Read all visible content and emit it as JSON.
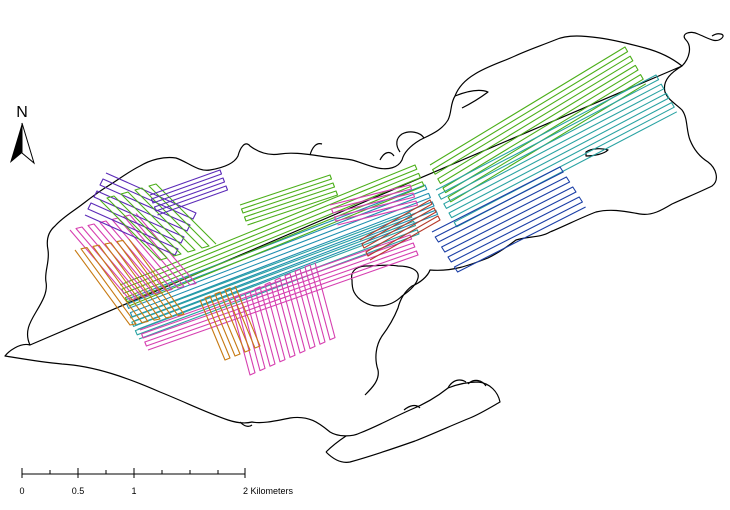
{
  "north_arrow": {
    "label": "N"
  },
  "scale_bar": {
    "ticks": [
      {
        "label": "0",
        "km": 0
      },
      {
        "label": "0.5",
        "km": 0.5
      },
      {
        "label": "1",
        "km": 1
      },
      {
        "label": "2 Kilometers",
        "km": 2
      }
    ]
  },
  "survey_track_colors": [
    "#4caf1a",
    "#1f8fb0",
    "#1b3fa6",
    "#5b2ab8",
    "#d63fb0",
    "#c77a12",
    "#b53a2a",
    "#2aa3a3"
  ],
  "shoreline_color": "#000000"
}
